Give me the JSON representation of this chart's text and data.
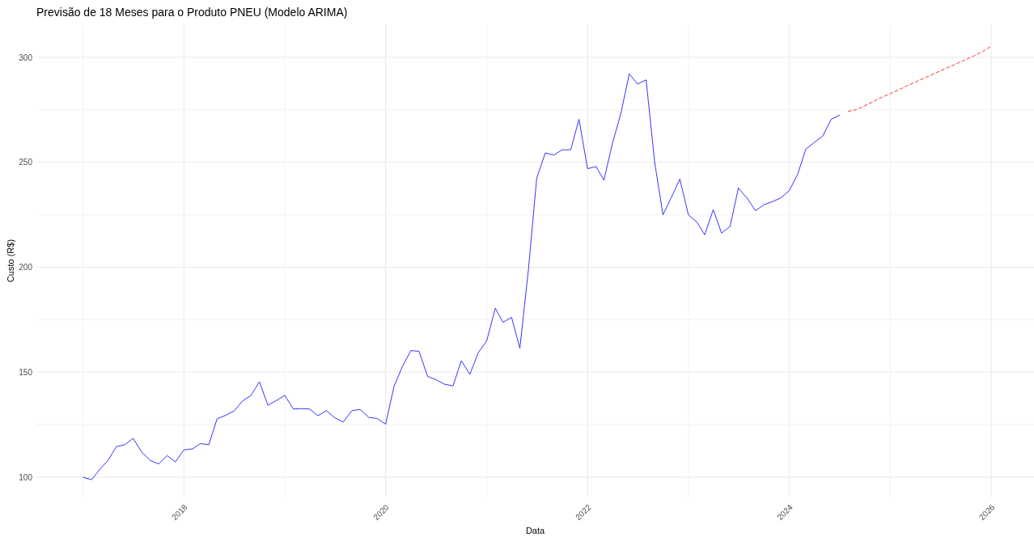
{
  "chart_data": {
    "type": "line",
    "title": "Previsão de 18 Meses para o Produto PNEU (Modelo ARIMA)",
    "xlabel": "Data",
    "ylabel": "Custo (R$)",
    "xlim": [
      "2016-07-16",
      "2026-06-05"
    ],
    "ylim": [
      90.4,
      315.8
    ],
    "xticks": [
      {
        "value": "2017",
        "label": null
      },
      {
        "value": "2018",
        "label": "2018"
      },
      {
        "value": "2019",
        "label": null
      },
      {
        "value": "2020",
        "label": "2020"
      },
      {
        "value": "2021",
        "label": null
      },
      {
        "value": "2022",
        "label": "2022"
      },
      {
        "value": "2023",
        "label": null
      },
      {
        "value": "2024",
        "label": "2024"
      },
      {
        "value": "2025",
        "label": null
      },
      {
        "value": "2026",
        "label": "2026"
      }
    ],
    "yticks": [
      100,
      {
        "value": 125,
        "label": null
      },
      150,
      {
        "value": 175,
        "label": null
      },
      200,
      {
        "value": 225,
        "label": null
      },
      250,
      {
        "value": 275,
        "label": null
      },
      300
    ],
    "grid": true,
    "series": [
      {
        "color": "#0000ff",
        "line_style": "solid",
        "x": [
          "2017-01",
          "2017-02",
          "2017-03",
          "2017-04",
          "2017-05",
          "2017-06",
          "2017-07",
          "2017-08",
          "2017-09",
          "2017-10",
          "2017-11",
          "2017-12",
          "2018-01",
          "2018-02",
          "2018-03",
          "2018-04",
          "2018-05",
          "2018-06",
          "2018-07",
          "2018-08",
          "2018-09",
          "2018-10",
          "2018-11",
          "2018-12",
          "2019-01",
          "2019-02",
          "2019-03",
          "2019-04",
          "2019-05",
          "2019-06",
          "2019-07",
          "2019-08",
          "2019-09",
          "2019-10",
          "2019-11",
          "2019-12",
          "2020-01",
          "2020-02",
          "2020-03",
          "2020-04",
          "2020-05",
          "2020-06",
          "2020-07",
          "2020-08",
          "2020-09",
          "2020-10",
          "2020-11",
          "2020-12",
          "2021-01",
          "2021-02",
          "2021-03",
          "2021-04",
          "2021-05",
          "2021-06",
          "2021-07",
          "2021-08",
          "2021-09",
          "2021-10",
          "2021-11",
          "2021-12",
          "2022-01",
          "2022-02",
          "2022-03",
          "2022-04",
          "2022-05",
          "2022-06",
          "2022-07",
          "2022-08",
          "2022-09",
          "2022-10",
          "2022-11",
          "2022-12",
          "2023-01",
          "2023-02",
          "2023-03",
          "2023-04",
          "2023-05",
          "2023-06",
          "2023-07",
          "2023-08",
          "2023-09",
          "2023-10",
          "2023-11",
          "2023-12",
          "2024-01",
          "2024-02",
          "2024-03",
          "2024-04",
          "2024-05",
          "2024-06",
          "2024-07"
        ],
        "values": [
          100,
          98.8,
          103.5,
          108,
          114.5,
          115.5,
          118.5,
          112,
          108,
          106.3,
          110.3,
          107.3,
          113,
          113.5,
          116,
          115.5,
          127.8,
          129.5,
          131.5,
          136.3,
          139,
          145.5,
          134.3,
          136.5,
          139,
          132.5,
          132.7,
          132.5,
          129.3,
          131.7,
          128.3,
          126.3,
          131.7,
          132.3,
          128.5,
          128,
          125.3,
          143.5,
          152.5,
          160.3,
          160,
          148,
          146.5,
          144.3,
          143.5,
          155.5,
          149,
          159.3,
          165,
          180.5,
          173.8,
          176.2,
          161.5,
          199,
          242.5,
          254.5,
          253.5,
          256,
          256,
          270.5,
          247,
          248,
          241.5,
          259,
          273,
          292.2,
          287.3,
          289.3,
          250,
          225,
          233.5,
          242,
          225,
          221.5,
          215.5,
          227.5,
          216.3,
          219.5,
          237.8,
          233,
          227,
          229.8,
          231.3,
          233,
          236.5,
          244.5,
          256.3,
          259.5,
          262.5,
          270.5,
          272.5
        ]
      },
      {
        "color": "#ff0000",
        "line_style": "dashed",
        "x": [
          "2024-08",
          "2024-09",
          "2024-10",
          "2024-11",
          "2024-12",
          "2025-01",
          "2025-02",
          "2025-03",
          "2025-04",
          "2025-05",
          "2025-06",
          "2025-07",
          "2025-08",
          "2025-09",
          "2025-10",
          "2025-11",
          "2025-12",
          "2026-01"
        ],
        "values": [
          274.3,
          275.2,
          277,
          279,
          281,
          282.8,
          284.6,
          286.4,
          288.2,
          290,
          291.8,
          293.6,
          295.4,
          297.2,
          299,
          300.8,
          302.8,
          305.3
        ]
      }
    ]
  }
}
